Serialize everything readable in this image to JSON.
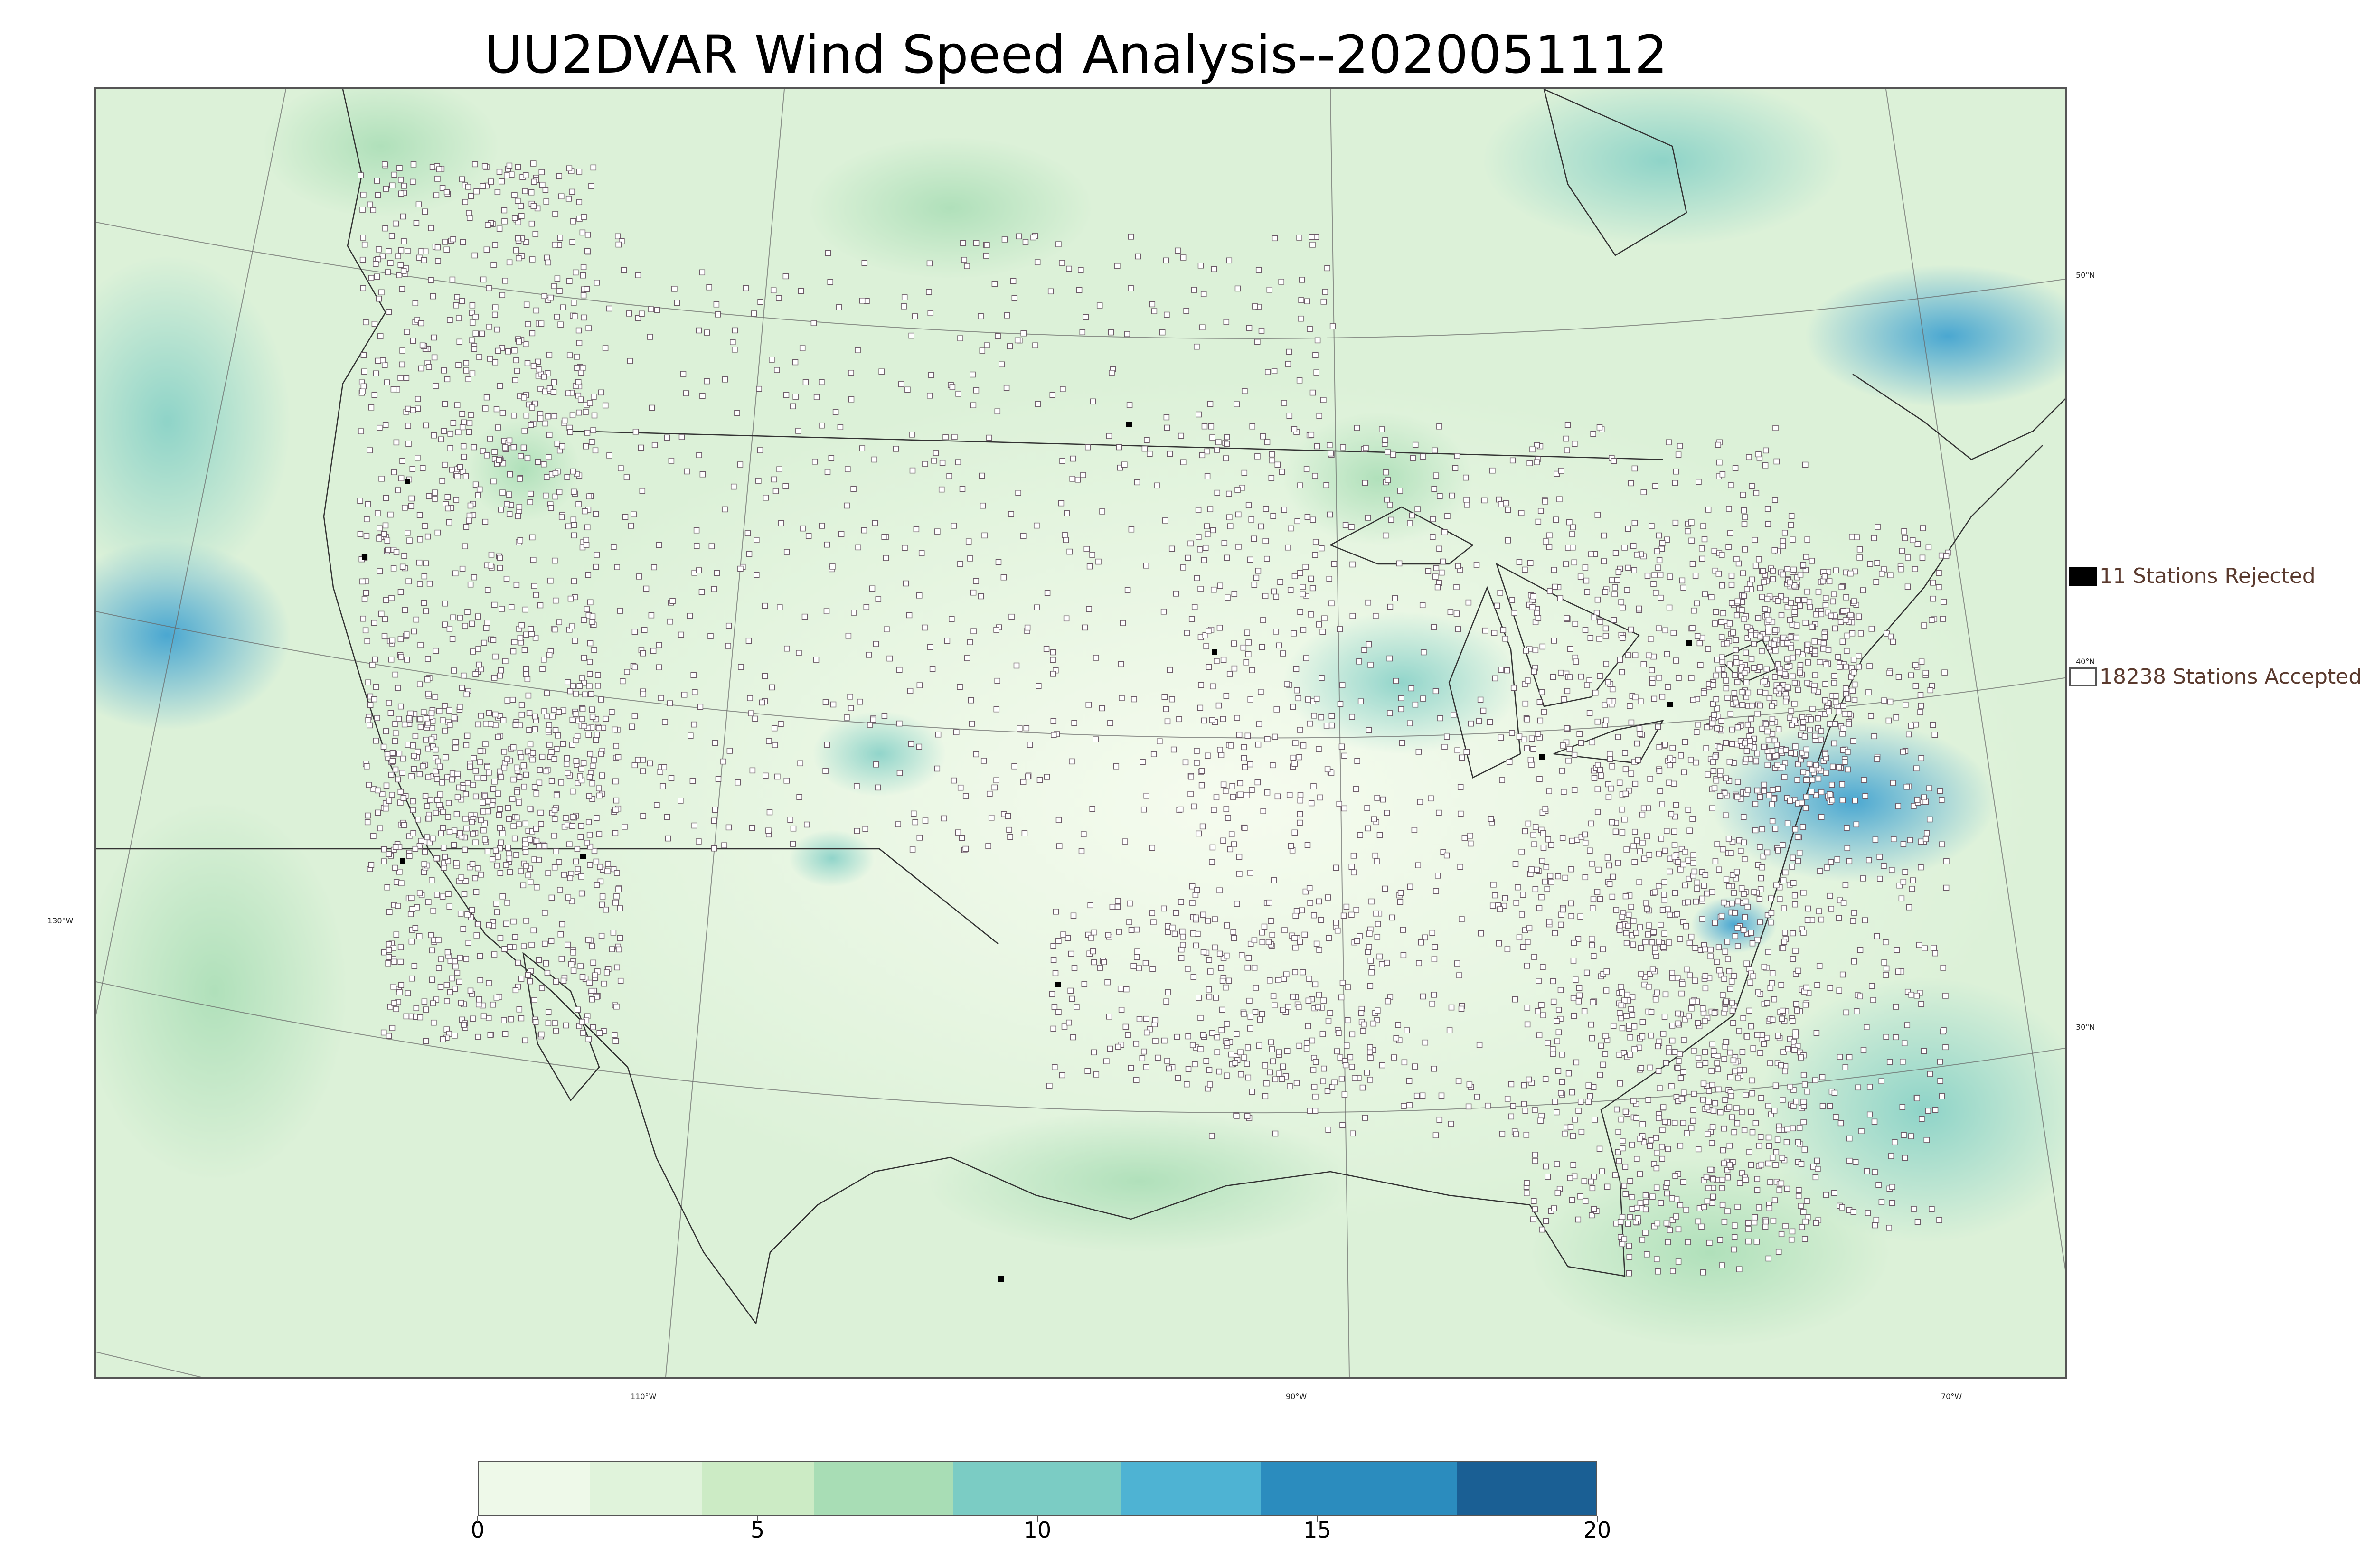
{
  "title": "UU2DVAR Wind Speed Analysis--2020051112",
  "latitude_labels": [
    {
      "text": "50°N",
      "deg": 50
    },
    {
      "text": "40°N",
      "deg": 40
    },
    {
      "text": "30°N",
      "deg": 30
    }
  ],
  "longitude_labels": [
    {
      "text": "130°W",
      "deg": -130
    },
    {
      "text": "110°W",
      "deg": -110
    },
    {
      "text": "90°W",
      "deg": -90
    },
    {
      "text": "70°W",
      "deg": -70
    }
  ],
  "legend": {
    "rejected": {
      "label": "11 Stations Rejected",
      "count": 11,
      "color": "#000000"
    },
    "accepted": {
      "label": "18238 Stations Accepted",
      "count": 18238,
      "color": "#ffffff"
    }
  },
  "colorbar": {
    "min": 0,
    "max": 20,
    "ticks": [
      "0",
      "5",
      "10",
      "15",
      "20"
    ],
    "tick_values": [
      0,
      5,
      10,
      15,
      20
    ],
    "colors": [
      "#f7fcf0",
      "#eef9e9",
      "#e0f3db",
      "#ccebc5",
      "#a8ddb5",
      "#7bccc4",
      "#4eb3d3",
      "#2b8cbe",
      "#1a5f94"
    ],
    "boundaries": [
      0,
      2,
      4,
      6,
      8.5,
      11.5,
      14,
      17.5,
      20
    ]
  },
  "colors": {
    "land_base": "#e8f5e4",
    "ocean_base": "#d8efd6",
    "strong_wind": "#3a9fd0",
    "borders": "#333333",
    "label_text": "#5a3a2e"
  }
}
